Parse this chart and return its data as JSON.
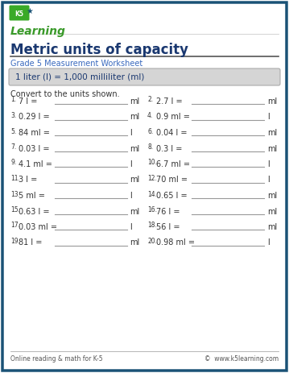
{
  "title": "Metric units of capacity",
  "subtitle": "Grade 5 Measurement Worksheet",
  "formula_box": "1 liter (l) = 1,000 milliliter (ml)",
  "instruction": "Convert to the units shown.",
  "problems": [
    {
      "num": "1.",
      "left": "7 l =",
      "unit": "ml"
    },
    {
      "num": "2.",
      "left": "2.7 l =",
      "unit": "ml"
    },
    {
      "num": "3.",
      "left": "0.29 l =",
      "unit": "ml"
    },
    {
      "num": "4.",
      "left": "0.9 ml =",
      "unit": "l"
    },
    {
      "num": "5.",
      "left": "84 ml =",
      "unit": "l"
    },
    {
      "num": "6.",
      "left": "0.04 l =",
      "unit": "ml"
    },
    {
      "num": "7.",
      "left": "0.03 l =",
      "unit": "ml"
    },
    {
      "num": "8.",
      "left": "0.3 l =",
      "unit": "ml"
    },
    {
      "num": "9.",
      "left": "4.1 ml =",
      "unit": "l"
    },
    {
      "num": "10.",
      "left": "6.7 ml =",
      "unit": "l"
    },
    {
      "num": "11.",
      "left": "3 l =",
      "unit": "ml"
    },
    {
      "num": "12.",
      "left": "70 ml =",
      "unit": "l"
    },
    {
      "num": "13.",
      "left": "5 ml =",
      "unit": "l"
    },
    {
      "num": "14.",
      "left": "0.65 l =",
      "unit": "ml"
    },
    {
      "num": "15.",
      "left": "0.63 l =",
      "unit": "ml"
    },
    {
      "num": "16.",
      "left": "76 l =",
      "unit": "ml"
    },
    {
      "num": "17.",
      "left": "0.03 ml =",
      "unit": "l"
    },
    {
      "num": "18.",
      "left": "56 l =",
      "unit": "ml"
    },
    {
      "num": "19.",
      "left": "81 l =",
      "unit": "ml"
    },
    {
      "num": "20.",
      "left": "0.98 ml =",
      "unit": "l"
    }
  ],
  "footer_left": "Online reading & math for K-5",
  "footer_right": "©  www.k5learning.com",
  "title_color": "#1a3870",
  "subtitle_color": "#3a6abf",
  "formula_color": "#1a3870",
  "bg_color": "#ffffff",
  "outer_border_color": "#1a5276",
  "inner_border_color": "#aaaaaa",
  "formula_box_color": "#d5d5d5",
  "line_color": "#999999",
  "text_color": "#333333",
  "footer_color": "#555555",
  "logo_green": "#3a9a2a",
  "logo_blue": "#1a5276",
  "rule_color": "#555555"
}
